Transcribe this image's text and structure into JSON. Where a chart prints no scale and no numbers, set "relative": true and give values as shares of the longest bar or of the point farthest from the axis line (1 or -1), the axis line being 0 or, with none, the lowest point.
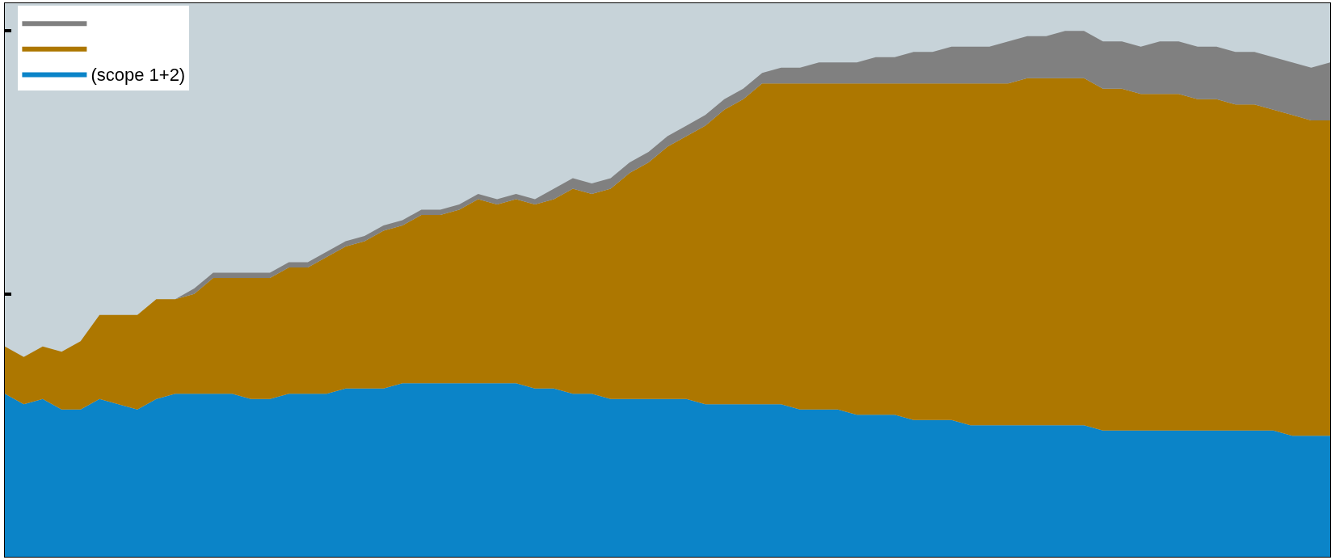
{
  "chart_data": {
    "type": "area",
    "stacked": true,
    "relative": true,
    "legend": "top left",
    "categories": [
      null,
      null,
      null,
      null,
      null,
      null,
      null,
      null,
      null,
      null,
      null,
      null,
      null,
      null,
      null,
      null,
      null,
      null,
      null,
      null,
      null,
      null,
      null,
      null,
      null,
      null,
      null,
      null,
      null,
      null,
      null,
      null,
      null,
      null,
      null,
      null,
      null,
      null,
      null,
      null,
      null,
      null,
      null,
      null,
      null,
      null,
      null,
      null,
      null,
      null,
      null,
      null,
      null,
      null,
      null,
      null,
      null,
      null,
      null,
      null,
      null,
      null,
      null,
      null,
      null,
      null,
      null,
      null,
      null,
      null,
      null
    ],
    "series": [
      {
        "name": "(scope 1+2)",
        "color": "#0b84c8",
        "values": [
          0.31,
          0.29,
          0.3,
          0.28,
          0.28,
          0.3,
          0.29,
          0.28,
          0.3,
          0.31,
          0.31,
          0.31,
          0.31,
          0.3,
          0.3,
          0.31,
          0.31,
          0.31,
          0.32,
          0.32,
          0.32,
          0.33,
          0.33,
          0.33,
          0.33,
          0.33,
          0.33,
          0.33,
          0.32,
          0.32,
          0.31,
          0.31,
          0.3,
          0.3,
          0.3,
          0.3,
          0.3,
          0.29,
          0.29,
          0.29,
          0.29,
          0.29,
          0.28,
          0.28,
          0.28,
          0.27,
          0.27,
          0.27,
          0.26,
          0.26,
          0.26,
          0.25,
          0.25,
          0.25,
          0.25,
          0.25,
          0.25,
          0.25,
          0.24,
          0.24,
          0.24,
          0.24,
          0.24,
          0.24,
          0.24,
          0.24,
          0.24,
          0.24,
          0.23,
          0.23,
          0.23
        ]
      },
      {
        "color": "#ad7700",
        "values": [
          0.09,
          0.09,
          0.1,
          0.11,
          0.13,
          0.16,
          0.17,
          0.18,
          0.19,
          0.18,
          0.19,
          0.22,
          0.22,
          0.23,
          0.23,
          0.24,
          0.24,
          0.26,
          0.27,
          0.28,
          0.3,
          0.3,
          0.32,
          0.32,
          0.33,
          0.35,
          0.34,
          0.35,
          0.35,
          0.36,
          0.39,
          0.38,
          0.4,
          0.43,
          0.45,
          0.48,
          0.5,
          0.53,
          0.56,
          0.58,
          0.61,
          0.61,
          0.62,
          0.62,
          0.62,
          0.63,
          0.63,
          0.63,
          0.64,
          0.64,
          0.64,
          0.65,
          0.65,
          0.65,
          0.66,
          0.66,
          0.66,
          0.66,
          0.65,
          0.65,
          0.64,
          0.64,
          0.64,
          0.63,
          0.63,
          0.62,
          0.62,
          0.61,
          0.61,
          0.6,
          0.6
        ]
      },
      {
        "color": "#808080",
        "values": [
          0,
          0,
          0,
          0,
          0,
          0,
          0,
          0,
          0,
          0,
          0.01,
          0.01,
          0.01,
          0.01,
          0.01,
          0.01,
          0.01,
          0.01,
          0.01,
          0.01,
          0.01,
          0.01,
          0.01,
          0.01,
          0.01,
          0.01,
          0.01,
          0.01,
          0.01,
          0.02,
          0.02,
          0.02,
          0.02,
          0.02,
          0.02,
          0.02,
          0.02,
          0.02,
          0.02,
          0.02,
          0.02,
          0.03,
          0.03,
          0.04,
          0.04,
          0.04,
          0.05,
          0.05,
          0.06,
          0.06,
          0.07,
          0.07,
          0.07,
          0.08,
          0.08,
          0.08,
          0.09,
          0.09,
          0.09,
          0.09,
          0.09,
          0.1,
          0.1,
          0.1,
          0.1,
          0.1,
          0.1,
          0.1,
          0.1,
          0.1,
          0.11
        ]
      }
    ]
  }
}
